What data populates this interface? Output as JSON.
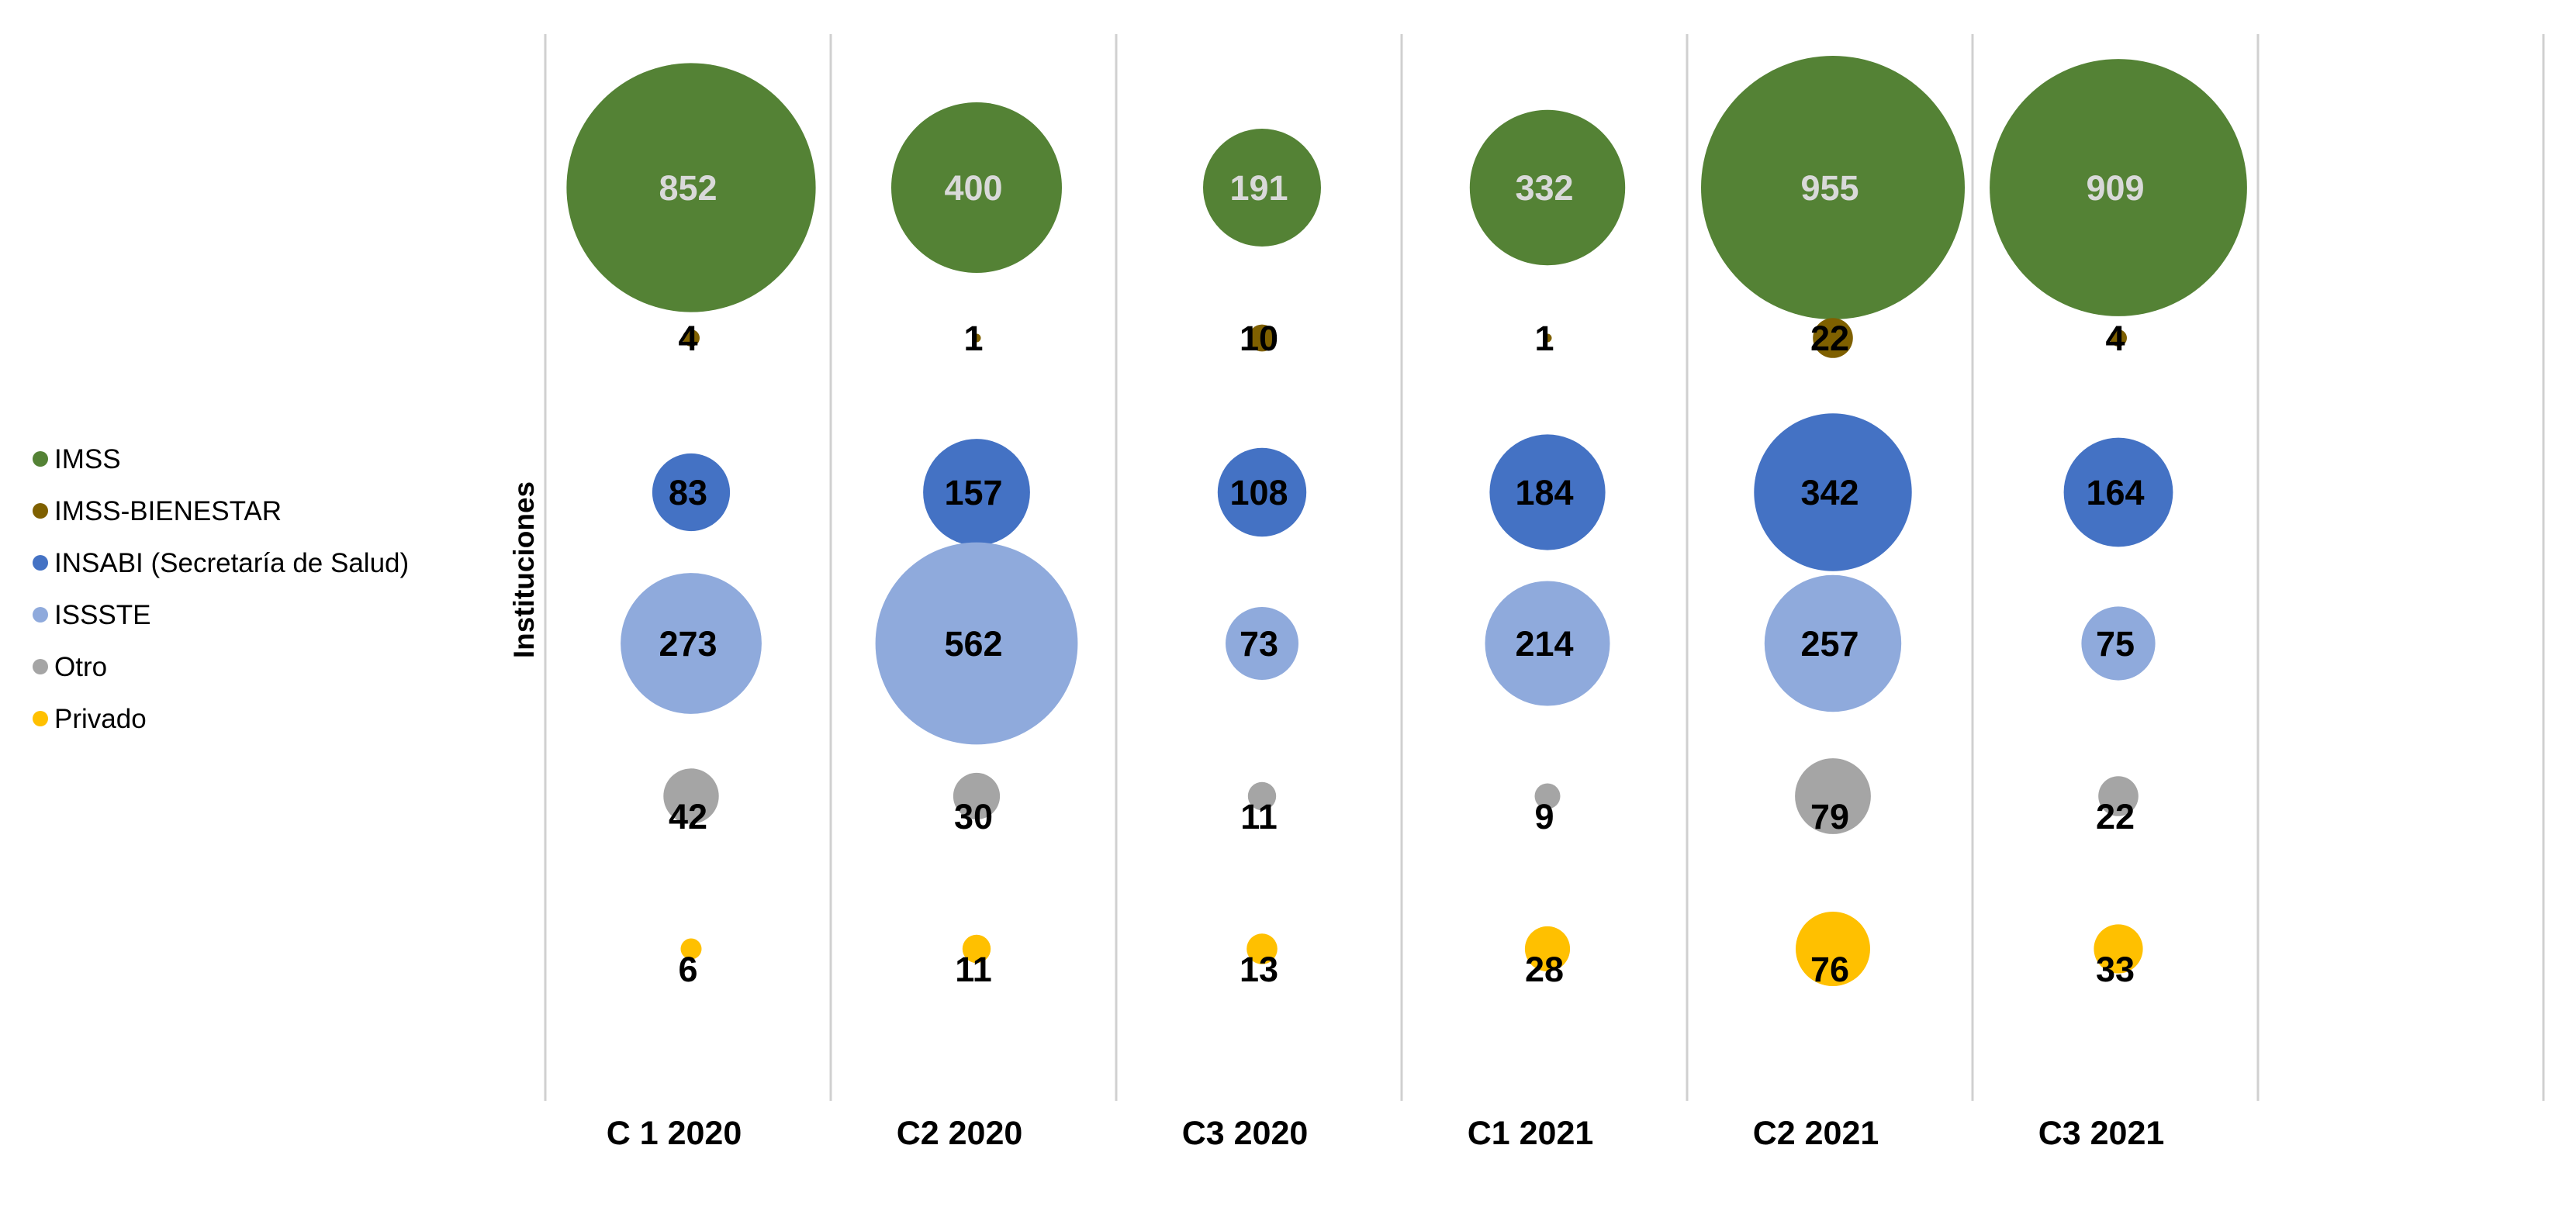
{
  "chart_data": {
    "type": "bubble",
    "title": "",
    "xlabel": "",
    "ylabel": "Instituciones",
    "legend_position": "left",
    "grid": "vertical",
    "categories": [
      "C 1 2020",
      "C2 2020",
      "C3 2020",
      "C1 2021",
      "C2 2021",
      "C3 2021"
    ],
    "series": [
      {
        "name": "IMSS",
        "color": "#548235",
        "label_color": "#d9d9d9",
        "values": [
          852,
          400,
          191,
          332,
          955,
          909
        ]
      },
      {
        "name": "IMSS-BIENESTAR",
        "color": "#7f6000",
        "label_color": "#000000",
        "values": [
          4,
          1,
          10,
          1,
          22,
          4
        ]
      },
      {
        "name": "INSABI (Secretaría de Salud)",
        "color": "#4472c4",
        "label_color": "#000000",
        "values": [
          83,
          157,
          108,
          184,
          342,
          164
        ]
      },
      {
        "name": "ISSSTE",
        "color": "#8faadc",
        "label_color": "#000000",
        "values": [
          273,
          562,
          73,
          214,
          257,
          75
        ]
      },
      {
        "name": "Otro",
        "color": "#a5a5a5",
        "label_color": "#000000",
        "values": [
          42,
          30,
          11,
          9,
          79,
          22
        ]
      },
      {
        "name": "Privado",
        "color": "#ffc000",
        "label_color": "#000000",
        "values": [
          6,
          11,
          13,
          28,
          76,
          33
        ]
      }
    ]
  }
}
